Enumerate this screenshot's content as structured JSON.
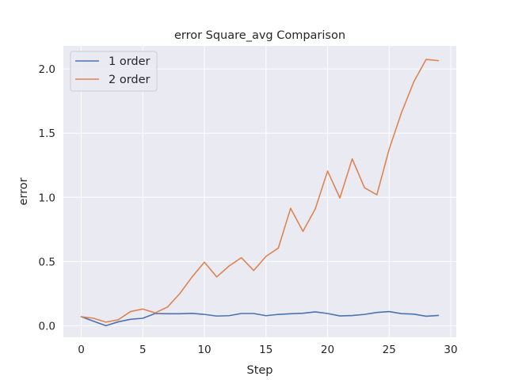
{
  "chart_data": {
    "type": "line",
    "title": "error Square_avg Comparison",
    "xlabel": "Step",
    "ylabel": "error",
    "xlim": [
      -1.45,
      30.45
    ],
    "ylim": [
      -0.09,
      2.18
    ],
    "xticks": [
      0,
      5,
      10,
      15,
      20,
      25,
      30
    ],
    "xtick_labels": [
      "0",
      "5",
      "10",
      "15",
      "20",
      "25",
      "30"
    ],
    "yticks": [
      0.0,
      0.5,
      1.0,
      1.5,
      2.0
    ],
    "ytick_labels": [
      "0.0",
      "0.5",
      "1.0",
      "1.5",
      "2.0"
    ],
    "grid": true,
    "legend_position": "top-left",
    "colors": {
      "background": "#EAEAF2",
      "grid": "#ffffff",
      "text": "#262626"
    },
    "x": [
      0,
      1,
      2,
      3,
      4,
      5,
      6,
      7,
      8,
      9,
      10,
      11,
      12,
      13,
      14,
      15,
      16,
      17,
      18,
      19,
      20,
      21,
      22,
      23,
      24,
      25,
      26,
      27,
      28,
      29
    ],
    "series": [
      {
        "name": "1 order",
        "color": "#4C72B0",
        "values": [
          0.07,
          0.035,
          0.0,
          0.03,
          0.05,
          0.058,
          0.095,
          0.093,
          0.093,
          0.096,
          0.088,
          0.075,
          0.078,
          0.095,
          0.095,
          0.078,
          0.088,
          0.093,
          0.097,
          0.108,
          0.095,
          0.076,
          0.079,
          0.088,
          0.103,
          0.11,
          0.094,
          0.09,
          0.074,
          0.08
        ]
      },
      {
        "name": "2 order",
        "color": "#DD8452",
        "values": [
          0.07,
          0.058,
          0.028,
          0.046,
          0.11,
          0.13,
          0.1,
          0.145,
          0.25,
          0.38,
          0.495,
          0.38,
          0.465,
          0.53,
          0.43,
          0.54,
          0.605,
          0.915,
          0.735,
          0.91,
          1.205,
          0.995,
          1.3,
          1.075,
          1.02,
          1.375,
          1.66,
          1.9,
          2.075,
          2.065
        ]
      }
    ]
  }
}
